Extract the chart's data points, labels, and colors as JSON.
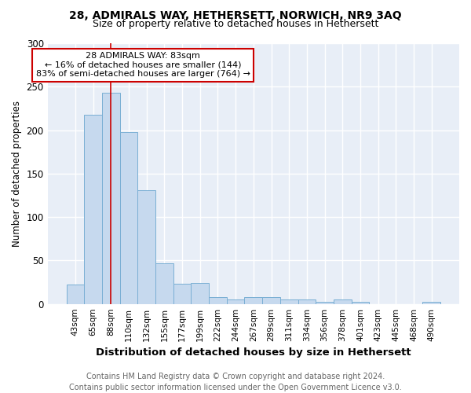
{
  "title1": "28, ADMIRALS WAY, HETHERSETT, NORWICH, NR9 3AQ",
  "title2": "Size of property relative to detached houses in Hethersett",
  "xlabel": "Distribution of detached houses by size in Hethersett",
  "ylabel": "Number of detached properties",
  "footer1": "Contains HM Land Registry data © Crown copyright and database right 2024.",
  "footer2": "Contains public sector information licensed under the Open Government Licence v3.0.",
  "categories": [
    "43sqm",
    "65sqm",
    "88sqm",
    "110sqm",
    "132sqm",
    "155sqm",
    "177sqm",
    "199sqm",
    "222sqm",
    "244sqm",
    "267sqm",
    "289sqm",
    "311sqm",
    "334sqm",
    "356sqm",
    "378sqm",
    "401sqm",
    "423sqm",
    "445sqm",
    "468sqm",
    "490sqm"
  ],
  "values": [
    22,
    218,
    243,
    198,
    131,
    47,
    23,
    24,
    8,
    5,
    8,
    8,
    5,
    5,
    2,
    5,
    2,
    0,
    0,
    0,
    2
  ],
  "bar_color": "#c6d9ee",
  "bar_edge_color": "#7aafd4",
  "property_index": 2,
  "property_label": "28 ADMIRALS WAY: 83sqm",
  "annotation_line1": "← 16% of detached houses are smaller (144)",
  "annotation_line2": "83% of semi-detached houses are larger (764) →",
  "ref_line_color": "#cc0000",
  "annotation_box_edge": "#cc0000",
  "ylim": [
    0,
    300
  ],
  "yticks": [
    0,
    50,
    100,
    150,
    200,
    250,
    300
  ],
  "bg_color": "#ffffff",
  "plot_bg_color": "#e8eef7",
  "grid_color": "#ffffff",
  "title1_fontsize": 10,
  "title2_fontsize": 9,
  "ylabel_fontsize": 8.5,
  "xlabel_fontsize": 9.5,
  "tick_fontsize": 7.5,
  "footer_fontsize": 7,
  "annot_fontsize": 8
}
